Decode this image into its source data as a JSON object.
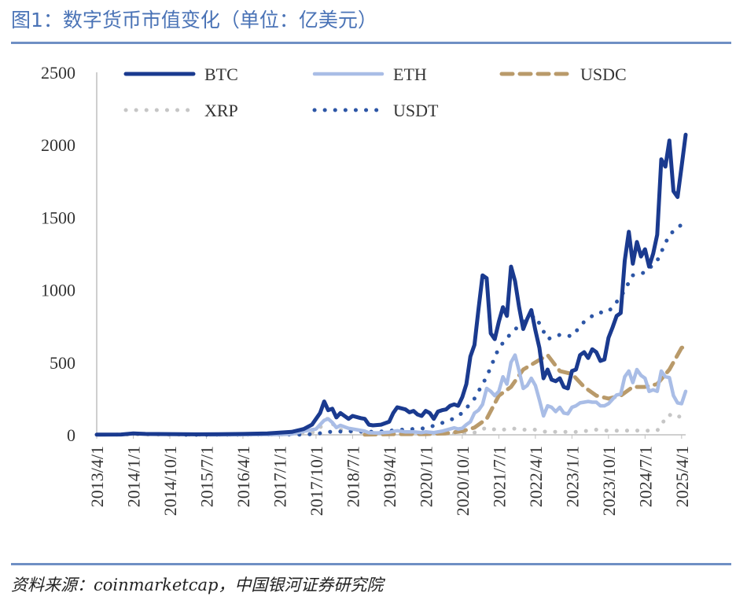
{
  "header": {
    "title": "图1：数字货币市值变化（单位：亿美元）"
  },
  "footer": {
    "source": "资料来源：coinmarketcap，中国银河证券研究院"
  },
  "chart_data": {
    "type": "line",
    "title": "图1：数字货币市值变化（单位：亿美元）",
    "xlabel": "",
    "ylabel": "",
    "ylim": [
      0,
      2500
    ],
    "yticks": [
      0,
      500,
      1000,
      1500,
      2000,
      2500
    ],
    "xticks": [
      "2013/4/1",
      "2014/1/1",
      "2014/10/1",
      "2015/7/1",
      "2016/4/1",
      "2017/1/1",
      "2017/10/1",
      "2018/7/1",
      "2019/4/1",
      "2020/1/1",
      "2020/10/1",
      "2021/7/1",
      "2022/4/1",
      "2023/1/1",
      "2023/10/1",
      "2024/7/1",
      "2025/4/1"
    ],
    "grid": false,
    "legend_position": "top",
    "series": [
      {
        "name": "BTC",
        "color": "#1a3a8f",
        "style": "solid",
        "points": [
          [
            "2013/4/1",
            1
          ],
          [
            "2013/10/1",
            2
          ],
          [
            "2014/1/1",
            10
          ],
          [
            "2014/4/1",
            6
          ],
          [
            "2014/10/1",
            5
          ],
          [
            "2015/4/1",
            3
          ],
          [
            "2015/10/1",
            4
          ],
          [
            "2016/4/1",
            6
          ],
          [
            "2016/10/1",
            10
          ],
          [
            "2017/1/1",
            15
          ],
          [
            "2017/4/1",
            20
          ],
          [
            "2017/7/1",
            40
          ],
          [
            "2017/9/1",
            70
          ],
          [
            "2017/11/1",
            150
          ],
          [
            "2017/12/1",
            230
          ],
          [
            "2018/1/1",
            170
          ],
          [
            "2018/2/1",
            180
          ],
          [
            "2018/3/1",
            120
          ],
          [
            "2018/4/1",
            150
          ],
          [
            "2018/5/1",
            130
          ],
          [
            "2018/6/1",
            110
          ],
          [
            "2018/7/1",
            130
          ],
          [
            "2018/9/1",
            115
          ],
          [
            "2018/10/1",
            110
          ],
          [
            "2018/11/1",
            70
          ],
          [
            "2018/12/1",
            65
          ],
          [
            "2019/2/1",
            70
          ],
          [
            "2019/4/1",
            90
          ],
          [
            "2019/5/1",
            150
          ],
          [
            "2019/6/1",
            190
          ],
          [
            "2019/8/1",
            175
          ],
          [
            "2019/9/1",
            155
          ],
          [
            "2019/10/1",
            165
          ],
          [
            "2019/11/1",
            140
          ],
          [
            "2019/12/1",
            130
          ],
          [
            "2020/1/1",
            165
          ],
          [
            "2020/2/1",
            150
          ],
          [
            "2020/3/1",
            110
          ],
          [
            "2020/4/1",
            160
          ],
          [
            "2020/5/1",
            170
          ],
          [
            "2020/6/1",
            175
          ],
          [
            "2020/7/1",
            200
          ],
          [
            "2020/8/1",
            210
          ],
          [
            "2020/9/1",
            200
          ],
          [
            "2020/10/1",
            260
          ],
          [
            "2020/11/1",
            350
          ],
          [
            "2020/12/1",
            540
          ],
          [
            "2021/1/1",
            620
          ],
          [
            "2021/2/1",
            870
          ],
          [
            "2021/3/1",
            1100
          ],
          [
            "2021/4/1",
            1080
          ],
          [
            "2021/5/1",
            700
          ],
          [
            "2021/6/1",
            660
          ],
          [
            "2021/7/1",
            780
          ],
          [
            "2021/8/1",
            880
          ],
          [
            "2021/9/1",
            820
          ],
          [
            "2021/10/1",
            1160
          ],
          [
            "2021/11/1",
            1060
          ],
          [
            "2021/12/1",
            880
          ],
          [
            "2022/1/1",
            730
          ],
          [
            "2022/2/1",
            800
          ],
          [
            "2022/3/1",
            860
          ],
          [
            "2022/4/1",
            720
          ],
          [
            "2022/5/1",
            600
          ],
          [
            "2022/6/1",
            390
          ],
          [
            "2022/7/1",
            450
          ],
          [
            "2022/8/1",
            380
          ],
          [
            "2022/9/1",
            370
          ],
          [
            "2022/10/1",
            390
          ],
          [
            "2022/11/1",
            330
          ],
          [
            "2022/12/1",
            320
          ],
          [
            "2023/1/1",
            440
          ],
          [
            "2023/2/1",
            450
          ],
          [
            "2023/3/1",
            550
          ],
          [
            "2023/4/1",
            570
          ],
          [
            "2023/5/1",
            530
          ],
          [
            "2023/6/1",
            590
          ],
          [
            "2023/7/1",
            570
          ],
          [
            "2023/8/1",
            510
          ],
          [
            "2023/9/1",
            520
          ],
          [
            "2023/10/1",
            670
          ],
          [
            "2023/11/1",
            740
          ],
          [
            "2023/12/1",
            820
          ],
          [
            "2024/1/1",
            840
          ],
          [
            "2024/2/1",
            1200
          ],
          [
            "2024/3/1",
            1400
          ],
          [
            "2024/4/1",
            1180
          ],
          [
            "2024/5/1",
            1330
          ],
          [
            "2024/6/1",
            1230
          ],
          [
            "2024/7/1",
            1280
          ],
          [
            "2024/8/1",
            1160
          ],
          [
            "2024/9/1",
            1250
          ],
          [
            "2024/10/1",
            1380
          ],
          [
            "2024/11/1",
            1900
          ],
          [
            "2024/12/1",
            1850
          ],
          [
            "2025/1/1",
            2030
          ],
          [
            "2025/2/1",
            1680
          ],
          [
            "2025/3/1",
            1640
          ],
          [
            "2025/4/1",
            1850
          ],
          [
            "2025/5/1",
            2070
          ]
        ]
      },
      {
        "name": "ETH",
        "color": "#a9bde6",
        "style": "solid",
        "points": [
          [
            "2015/8/1",
            0
          ],
          [
            "2016/4/1",
            1
          ],
          [
            "2017/1/1",
            2
          ],
          [
            "2017/4/1",
            5
          ],
          [
            "2017/7/1",
            25
          ],
          [
            "2017/10/1",
            40
          ],
          [
            "2017/11/1",
            70
          ],
          [
            "2017/12/1",
            100
          ],
          [
            "2018/1/1",
            110
          ],
          [
            "2018/2/1",
            85
          ],
          [
            "2018/3/1",
            50
          ],
          [
            "2018/4/1",
            65
          ],
          [
            "2018/5/1",
            55
          ],
          [
            "2018/6/1",
            45
          ],
          [
            "2018/8/1",
            35
          ],
          [
            "2018/10/1",
            25
          ],
          [
            "2018/11/1",
            15
          ],
          [
            "2019/1/1",
            13
          ],
          [
            "2019/4/1",
            18
          ],
          [
            "2019/6/1",
            28
          ],
          [
            "2019/8/1",
            20
          ],
          [
            "2019/10/1",
            20
          ],
          [
            "2019/12/1",
            15
          ],
          [
            "2020/1/1",
            20
          ],
          [
            "2020/3/1",
            15
          ],
          [
            "2020/5/1",
            25
          ],
          [
            "2020/7/1",
            40
          ],
          [
            "2020/8/1",
            48
          ],
          [
            "2020/9/1",
            40
          ],
          [
            "2020/10/1",
            45
          ],
          [
            "2020/11/1",
            70
          ],
          [
            "2020/12/1",
            90
          ],
          [
            "2021/1/1",
            150
          ],
          [
            "2021/2/1",
            170
          ],
          [
            "2021/3/1",
            210
          ],
          [
            "2021/4/1",
            320
          ],
          [
            "2021/5/1",
            300
          ],
          [
            "2021/6/1",
            270
          ],
          [
            "2021/7/1",
            300
          ],
          [
            "2021/8/1",
            400
          ],
          [
            "2021/9/1",
            350
          ],
          [
            "2021/10/1",
            500
          ],
          [
            "2021/11/1",
            550
          ],
          [
            "2021/12/1",
            440
          ],
          [
            "2022/1/1",
            320
          ],
          [
            "2022/2/1",
            340
          ],
          [
            "2022/3/1",
            390
          ],
          [
            "2022/4/1",
            340
          ],
          [
            "2022/5/1",
            240
          ],
          [
            "2022/6/1",
            130
          ],
          [
            "2022/7/1",
            200
          ],
          [
            "2022/8/1",
            190
          ],
          [
            "2022/9/1",
            160
          ],
          [
            "2022/10/1",
            190
          ],
          [
            "2022/11/1",
            150
          ],
          [
            "2022/12/1",
            145
          ],
          [
            "2023/1/1",
            190
          ],
          [
            "2023/2/1",
            200
          ],
          [
            "2023/3/1",
            220
          ],
          [
            "2023/4/1",
            225
          ],
          [
            "2023/5/1",
            230
          ],
          [
            "2023/6/1",
            225
          ],
          [
            "2023/7/1",
            225
          ],
          [
            "2023/8/1",
            200
          ],
          [
            "2023/9/1",
            200
          ],
          [
            "2023/10/1",
            215
          ],
          [
            "2023/11/1",
            245
          ],
          [
            "2023/12/1",
            275
          ],
          [
            "2024/1/1",
            280
          ],
          [
            "2024/2/1",
            400
          ],
          [
            "2024/3/1",
            440
          ],
          [
            "2024/4/1",
            360
          ],
          [
            "2024/5/1",
            450
          ],
          [
            "2024/6/1",
            410
          ],
          [
            "2024/7/1",
            390
          ],
          [
            "2024/8/1",
            300
          ],
          [
            "2024/9/1",
            310
          ],
          [
            "2024/10/1",
            300
          ],
          [
            "2024/11/1",
            440
          ],
          [
            "2024/12/1",
            400
          ],
          [
            "2025/1/1",
            395
          ],
          [
            "2025/2/1",
            270
          ],
          [
            "2025/3/1",
            220
          ],
          [
            "2025/4/1",
            215
          ],
          [
            "2025/5/1",
            300
          ]
        ]
      },
      {
        "name": "USDC",
        "color": "#b99a6a",
        "style": "dashed",
        "points": [
          [
            "2018/10/1",
            1
          ],
          [
            "2019/6/1",
            5
          ],
          [
            "2020/1/1",
            5
          ],
          [
            "2020/6/1",
            10
          ],
          [
            "2020/10/1",
            25
          ],
          [
            "2021/1/1",
            50
          ],
          [
            "2021/4/1",
            110
          ],
          [
            "2021/7/1",
            270
          ],
          [
            "2021/10/1",
            330
          ],
          [
            "2022/1/1",
            450
          ],
          [
            "2022/4/1",
            500
          ],
          [
            "2022/7/1",
            550
          ],
          [
            "2022/10/1",
            440
          ],
          [
            "2023/1/1",
            420
          ],
          [
            "2023/4/1",
            330
          ],
          [
            "2023/7/1",
            270
          ],
          [
            "2023/10/1",
            250
          ],
          [
            "2024/1/1",
            270
          ],
          [
            "2024/4/1",
            330
          ],
          [
            "2024/7/1",
            330
          ],
          [
            "2024/10/1",
            350
          ],
          [
            "2025/1/1",
            450
          ],
          [
            "2025/4/1",
            600
          ],
          [
            "2025/5/1",
            610
          ]
        ]
      },
      {
        "name": "XRP",
        "color": "#c6c6c6",
        "style": "dotted",
        "points": [
          [
            "2013/9/1",
            1
          ],
          [
            "2014/1/1",
            2
          ],
          [
            "2014/10/1",
            1
          ],
          [
            "2015/7/1",
            1
          ],
          [
            "2016/4/1",
            1
          ],
          [
            "2017/1/1",
            1
          ],
          [
            "2017/4/1",
            10
          ],
          [
            "2017/7/1",
            10
          ],
          [
            "2017/10/1",
            20
          ],
          [
            "2017/12/1",
            80
          ],
          [
            "2018/1/1",
            120
          ],
          [
            "2018/3/1",
            40
          ],
          [
            "2018/7/1",
            20
          ],
          [
            "2018/10/1",
            18
          ],
          [
            "2019/1/1",
            15
          ],
          [
            "2019/6/1",
            15
          ],
          [
            "2019/10/1",
            12
          ],
          [
            "2020/1/1",
            10
          ],
          [
            "2020/6/1",
            8
          ],
          [
            "2020/10/1",
            10
          ],
          [
            "2020/12/1",
            15
          ],
          [
            "2021/1/1",
            15
          ],
          [
            "2021/4/1",
            50
          ],
          [
            "2021/7/1",
            30
          ],
          [
            "2021/10/1",
            45
          ],
          [
            "2022/1/1",
            35
          ],
          [
            "2022/4/1",
            35
          ],
          [
            "2022/7/1",
            18
          ],
          [
            "2022/10/1",
            22
          ],
          [
            "2023/1/1",
            18
          ],
          [
            "2023/4/1",
            25
          ],
          [
            "2023/7/1",
            35
          ],
          [
            "2023/10/1",
            28
          ],
          [
            "2024/1/1",
            28
          ],
          [
            "2024/4/1",
            30
          ],
          [
            "2024/7/1",
            28
          ],
          [
            "2024/10/1",
            30
          ],
          [
            "2024/11/1",
            60
          ],
          [
            "2024/12/1",
            120
          ],
          [
            "2025/1/1",
            140
          ],
          [
            "2025/2/1",
            120
          ],
          [
            "2025/3/1",
            130
          ],
          [
            "2025/4/1",
            120
          ],
          [
            "2025/5/1",
            140
          ]
        ]
      },
      {
        "name": "USDT",
        "color": "#2d56a6",
        "style": "dotted",
        "points": [
          [
            "2015/2/1",
            0
          ],
          [
            "2016/4/1",
            1
          ],
          [
            "2017/1/1",
            2
          ],
          [
            "2017/6/1",
            1
          ],
          [
            "2017/10/1",
            6
          ],
          [
            "2018/1/1",
            20
          ],
          [
            "2018/7/1",
            25
          ],
          [
            "2019/1/1",
            20
          ],
          [
            "2019/7/1",
            35
          ],
          [
            "2020/1/1",
            45
          ],
          [
            "2020/7/1",
            100
          ],
          [
            "2020/10/1",
            150
          ],
          [
            "2021/1/1",
            250
          ],
          [
            "2021/4/1",
            400
          ],
          [
            "2021/7/1",
            600
          ],
          [
            "2021/10/1",
            700
          ],
          [
            "2022/1/1",
            780
          ],
          [
            "2022/4/1",
            820
          ],
          [
            "2022/7/1",
            660
          ],
          [
            "2022/10/1",
            690
          ],
          [
            "2023/1/1",
            680
          ],
          [
            "2023/4/1",
            780
          ],
          [
            "2023/7/1",
            840
          ],
          [
            "2023/10/1",
            850
          ],
          [
            "2024/1/1",
            950
          ],
          [
            "2024/4/1",
            1100
          ],
          [
            "2024/7/1",
            1120
          ],
          [
            "2024/10/1",
            1200
          ],
          [
            "2025/1/1",
            1380
          ],
          [
            "2025/4/1",
            1450
          ],
          [
            "2025/5/1",
            1500
          ]
        ]
      }
    ]
  }
}
